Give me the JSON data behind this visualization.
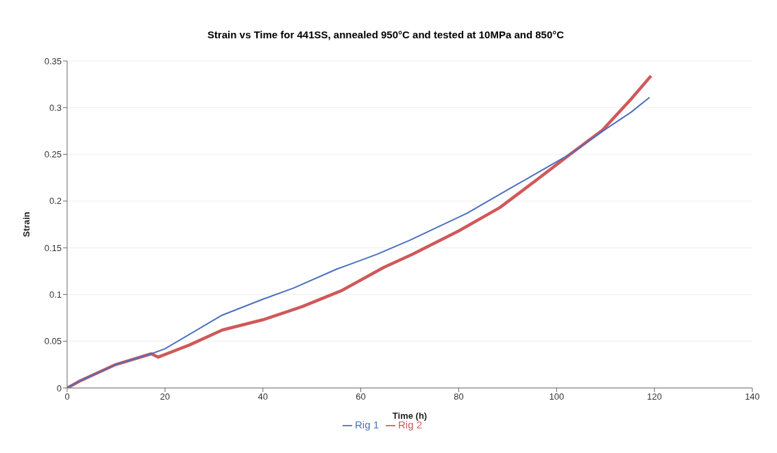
{
  "chart_data": {
    "type": "line",
    "title": "Strain vs Time for 441SS, annealed 950°C and tested at 10MPa and 850°C",
    "xlabel": "Time (h)",
    "ylabel": "Strain",
    "xlim": [
      0,
      140
    ],
    "xticks": [
      0,
      20,
      40,
      60,
      80,
      100,
      120,
      140
    ],
    "ylim": [
      0,
      0.35
    ],
    "yticks": [
      0,
      0.05,
      0.1,
      0.15,
      0.2,
      0.25,
      0.3,
      0.35
    ],
    "grid": "y",
    "legend": "bottom",
    "marker": "none",
    "series": [
      {
        "name": "Rig 1",
        "color": "#4a6fc0",
        "x": [
          0,
          2.6,
          9.9,
          17.2,
          20,
          31.7,
          40,
          46.3,
          55,
          63.3,
          70,
          81.7,
          90,
          96,
          103,
          110.3,
          115.2,
          119
        ],
        "values": [
          0,
          0.0075,
          0.025,
          0.0366,
          0.042,
          0.078,
          0.095,
          0.107,
          0.127,
          0.143,
          0.158,
          0.187,
          0.212,
          0.23,
          0.251,
          0.278,
          0.295,
          0.311
        ]
      },
      {
        "name": "Rig 2",
        "color": "#d0585a",
        "x": [
          0,
          2.6,
          9.9,
          17.2,
          18.6,
          25,
          31.7,
          40,
          48,
          56,
          64.7,
          70.5,
          80,
          88.4,
          96,
          103,
          109.4,
          115.2,
          119.3
        ],
        "values": [
          0,
          0.0075,
          0.025,
          0.0366,
          0.033,
          0.046,
          0.062,
          0.073,
          0.087,
          0.104,
          0.129,
          0.143,
          0.168,
          0.193,
          0.223,
          0.251,
          0.276,
          0.309,
          0.334
        ]
      }
    ]
  }
}
